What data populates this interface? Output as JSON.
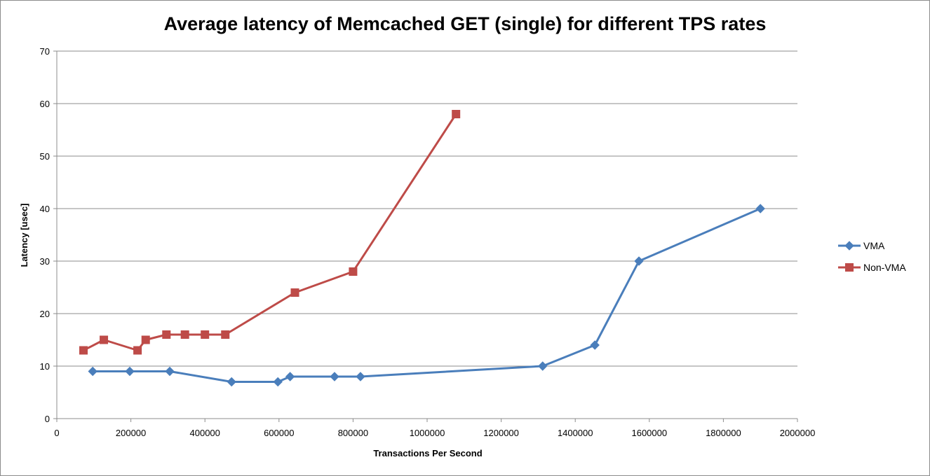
{
  "chart_data": {
    "type": "line",
    "title": "Average latency of Memcached GET (single) for different TPS rates",
    "xlabel": "Transactions  Per Second",
    "ylabel": "Latency [usec]",
    "xlim": [
      0,
      2000000
    ],
    "ylim": [
      0,
      70
    ],
    "x_ticks": [
      "0",
      "200000",
      "400000",
      "600000",
      "800000",
      "1000000",
      "1200000",
      "1400000",
      "1600000",
      "1800000",
      "2000000"
    ],
    "y_ticks": [
      "0",
      "10",
      "20",
      "30",
      "40",
      "50",
      "60",
      "70"
    ],
    "grid": "horizontal",
    "legend_position": "right",
    "series": [
      {
        "name": "VMA",
        "color": "#4a7ebb",
        "marker": "diamond",
        "points": [
          [
            97000,
            9
          ],
          [
            197000,
            9
          ],
          [
            305000,
            9
          ],
          [
            472000,
            7
          ],
          [
            597000,
            7
          ],
          [
            630000,
            8
          ],
          [
            750000,
            8
          ],
          [
            820000,
            8
          ],
          [
            1312000,
            10
          ],
          [
            1453000,
            14
          ],
          [
            1572000,
            30
          ],
          [
            1900000,
            40
          ]
        ]
      },
      {
        "name": "Non-VMA",
        "color": "#be4b48",
        "marker": "square",
        "points": [
          [
            72000,
            13
          ],
          [
            127000,
            15
          ],
          [
            218000,
            13
          ],
          [
            240000,
            15
          ],
          [
            296000,
            16
          ],
          [
            346000,
            16
          ],
          [
            400000,
            16
          ],
          [
            455000,
            16
          ],
          [
            643000,
            24
          ],
          [
            800000,
            28
          ],
          [
            1078000,
            58
          ]
        ]
      }
    ]
  }
}
